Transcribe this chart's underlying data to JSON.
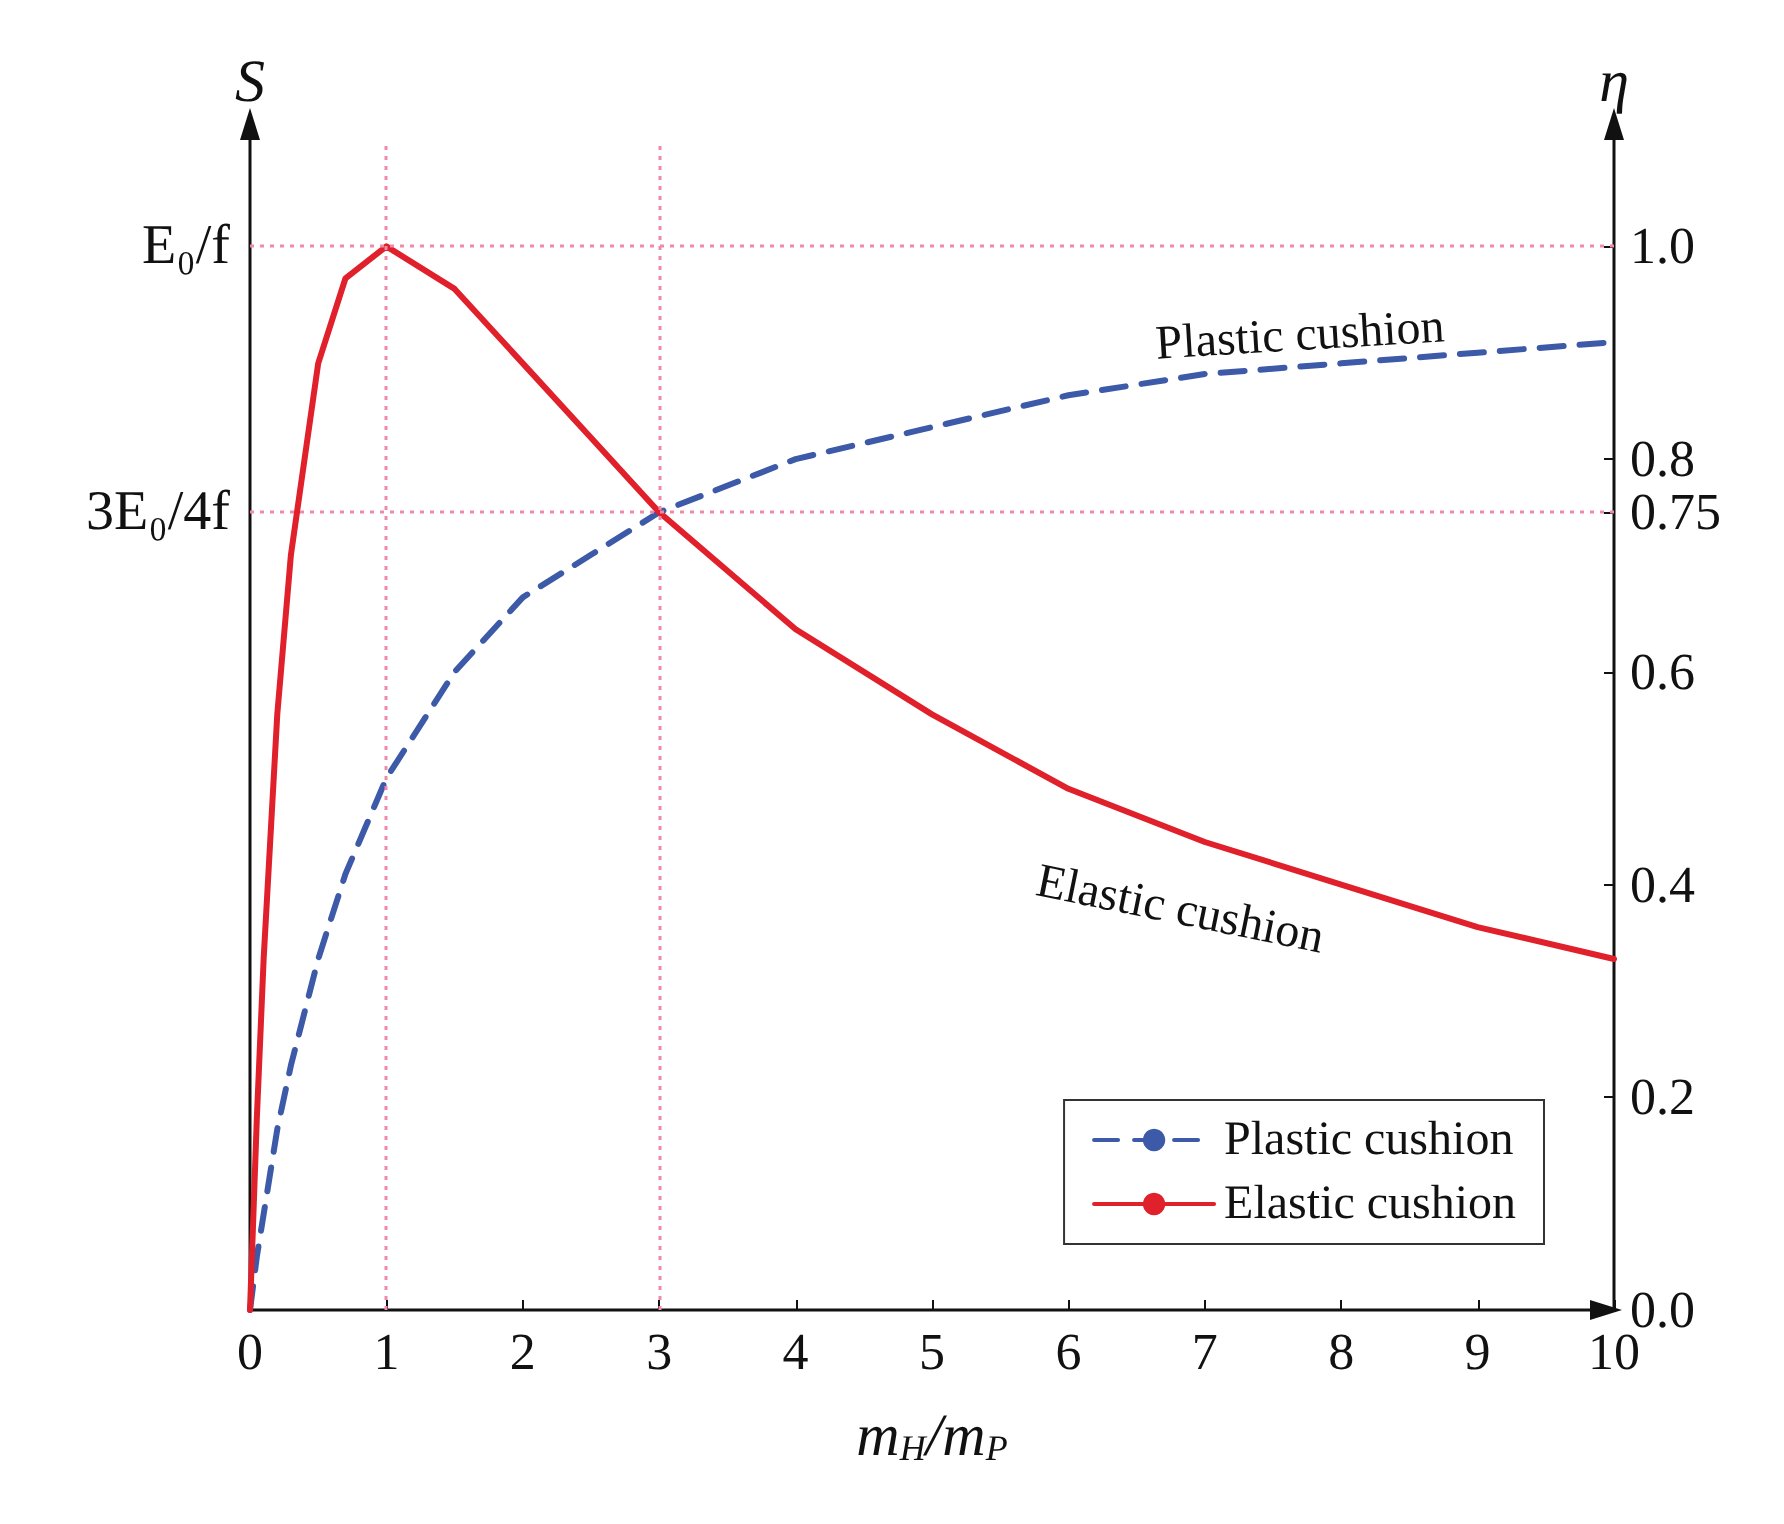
{
  "chart_data": {
    "type": "line",
    "xlabel": "m$_{H}$/m$_{P}$",
    "ylabel": "η",
    "y2label": "S",
    "xlim": [
      0,
      10
    ],
    "xticks": [
      0,
      1,
      2,
      3,
      4,
      5,
      6,
      7,
      8,
      9,
      10
    ],
    "ylim": [
      0,
      1.1
    ],
    "yticks": [
      {
        "value": 0,
        "label": "0.0"
      },
      0.2,
      0.4,
      0.6,
      0.75,
      0.8,
      {
        "value": 1,
        "label": "1.0"
      }
    ],
    "grid": false,
    "legend": "bottom right",
    "marker": "none",
    "series": [
      {
        "name": "Plastic cushion",
        "color": "#3d5aa8",
        "line_style": "dashed",
        "x": [
          0,
          0.05,
          0.1,
          0.2,
          0.3,
          0.5,
          0.7,
          1,
          1.5,
          2,
          2.5,
          3,
          4,
          5,
          6,
          7,
          8,
          9,
          10
        ],
        "values": [
          0,
          0.05,
          0.09,
          0.17,
          0.23,
          0.33,
          0.41,
          0.5,
          0.6,
          0.67,
          0.71,
          0.75,
          0.8,
          0.83,
          0.86,
          0.88,
          0.89,
          0.9,
          0.91
        ]
      },
      {
        "name": "Elastic cushion",
        "color": "#e0202a",
        "line_style": "solid",
        "x": [
          0,
          0.05,
          0.1,
          0.2,
          0.3,
          0.5,
          0.7,
          1,
          1.5,
          2,
          2.5,
          3,
          4,
          5,
          6,
          7,
          8,
          9,
          10
        ],
        "values": [
          0,
          0.18,
          0.33,
          0.56,
          0.71,
          0.89,
          0.97,
          1,
          0.96,
          0.89,
          0.82,
          0.75,
          0.64,
          0.56,
          0.49,
          0.44,
          0.4,
          0.36,
          0.33
        ]
      }
    ],
    "ref_lines": [
      {
        "axis": "y",
        "value": 1,
        "label": "E₀/f",
        "color": "#f08aa8",
        "line_style": "dotted"
      },
      {
        "axis": "y",
        "value": 0.75,
        "label": "3E₀/4f",
        "color": "#f08aa8",
        "line_style": "dotted"
      },
      {
        "axis": "x",
        "value": 1,
        "color": "#f08aa8",
        "line_style": "dotted"
      },
      {
        "axis": "x",
        "value": 3,
        "color": "#f08aa8",
        "line_style": "dotted"
      }
    ],
    "annotations": [
      "Plastic cushion",
      "Elastic cushion"
    ]
  }
}
